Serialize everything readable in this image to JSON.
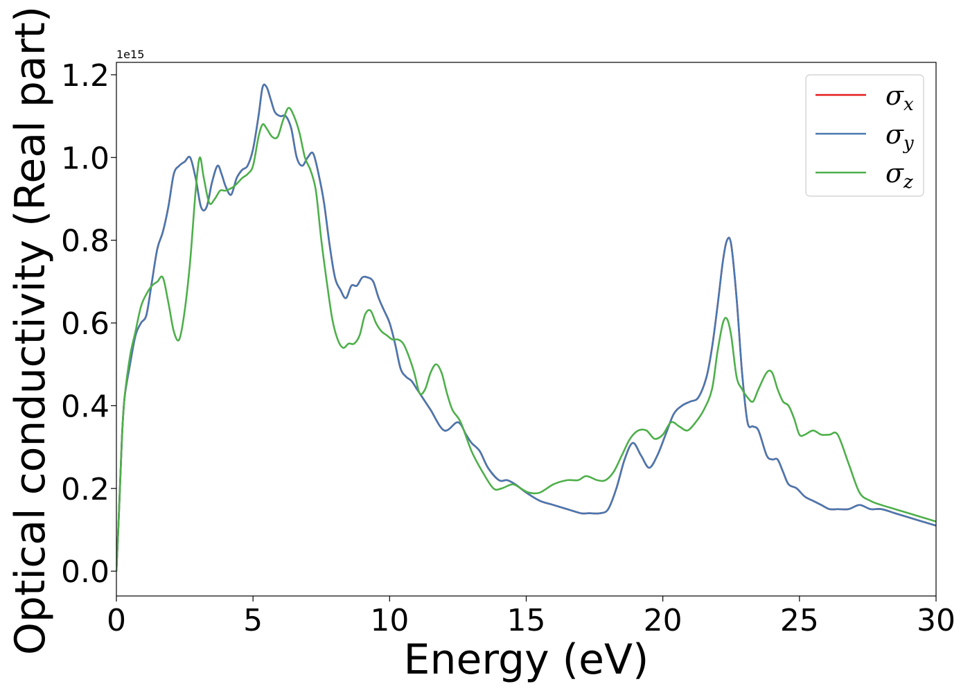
{
  "chart_data": {
    "type": "line",
    "xlabel": "Energy (eV)",
    "ylabel": "Optical conductivity (Real part)",
    "y_offset_label": "1e15",
    "xlim": [
      0,
      30
    ],
    "ylim": [
      -0.06,
      1.23
    ],
    "xticks": [
      0,
      5,
      10,
      15,
      20,
      25,
      30
    ],
    "xtick_labels": [
      "0",
      "5",
      "10",
      "15",
      "20",
      "25",
      "30"
    ],
    "yticks": [
      0.0,
      0.2,
      0.4,
      0.6,
      0.8,
      1.0,
      1.2
    ],
    "ytick_labels": [
      "0.0",
      "0.2",
      "0.4",
      "0.6",
      "0.8",
      "1.0",
      "1.2"
    ],
    "grid": false,
    "legend_position": "top-right",
    "series": [
      {
        "name": "σx",
        "symbol": "σ",
        "subscript": "x",
        "color": "#e41a1c",
        "x": [
          0,
          0.1,
          0.2,
          0.3,
          0.5,
          0.7,
          0.9,
          1.1,
          1.3,
          1.5,
          1.7,
          1.9,
          2.1,
          2.3,
          2.5,
          2.7,
          2.9,
          3.1,
          3.3,
          3.5,
          3.7,
          3.85,
          4.0,
          4.2,
          4.4,
          4.6,
          4.8,
          5.0,
          5.2,
          5.35,
          5.5,
          5.65,
          5.8,
          6.0,
          6.2,
          6.4,
          6.6,
          6.8,
          7.0,
          7.2,
          7.4,
          7.6,
          7.8,
          8.0,
          8.2,
          8.4,
          8.6,
          8.8,
          9.0,
          9.2,
          9.4,
          9.6,
          9.8,
          10.0,
          10.2,
          10.4,
          10.6,
          10.8,
          11.0,
          11.2,
          11.5,
          12.0,
          12.5,
          12.8,
          13.0,
          13.3,
          13.6,
          14.0,
          14.3,
          14.6,
          15.0,
          15.5,
          16.0,
          16.5,
          17.0,
          17.3,
          17.7,
          18.0,
          18.3,
          18.6,
          18.9,
          19.2,
          19.5,
          19.8,
          20.1,
          20.4,
          20.7,
          21.0,
          21.3,
          21.6,
          21.8,
          22.0,
          22.2,
          22.35,
          22.5,
          22.7,
          22.9,
          23.1,
          23.3,
          23.5,
          23.8,
          24.0,
          24.2,
          24.4,
          24.6,
          24.9,
          25.2,
          25.5,
          25.8,
          26.1,
          26.4,
          26.8,
          27.2,
          27.6,
          28.0,
          28.5,
          29.0,
          29.5,
          30.0
        ],
        "y": [
          0.0,
          0.15,
          0.32,
          0.42,
          0.5,
          0.57,
          0.6,
          0.62,
          0.7,
          0.78,
          0.82,
          0.88,
          0.96,
          0.98,
          0.99,
          1.0,
          0.95,
          0.88,
          0.88,
          0.94,
          0.98,
          0.96,
          0.93,
          0.91,
          0.95,
          0.97,
          0.98,
          1.02,
          1.1,
          1.17,
          1.17,
          1.14,
          1.11,
          1.1,
          1.1,
          1.07,
          1.0,
          0.98,
          1.0,
          1.01,
          0.96,
          0.89,
          0.79,
          0.71,
          0.68,
          0.66,
          0.69,
          0.69,
          0.71,
          0.71,
          0.7,
          0.66,
          0.63,
          0.6,
          0.55,
          0.49,
          0.47,
          0.46,
          0.44,
          0.42,
          0.39,
          0.34,
          0.36,
          0.33,
          0.31,
          0.29,
          0.25,
          0.22,
          0.22,
          0.21,
          0.19,
          0.17,
          0.16,
          0.15,
          0.14,
          0.14,
          0.14,
          0.15,
          0.2,
          0.27,
          0.31,
          0.28,
          0.25,
          0.28,
          0.33,
          0.38,
          0.4,
          0.41,
          0.42,
          0.47,
          0.54,
          0.64,
          0.75,
          0.8,
          0.79,
          0.66,
          0.48,
          0.36,
          0.35,
          0.34,
          0.28,
          0.27,
          0.27,
          0.24,
          0.21,
          0.2,
          0.18,
          0.17,
          0.16,
          0.15,
          0.15,
          0.15,
          0.16,
          0.15,
          0.15,
          0.14,
          0.13,
          0.12,
          0.11
        ]
      },
      {
        "name": "σy",
        "symbol": "σ",
        "subscript": "y",
        "color": "#4878b0",
        "x": [
          0,
          0.1,
          0.2,
          0.3,
          0.5,
          0.7,
          0.9,
          1.1,
          1.3,
          1.5,
          1.7,
          1.9,
          2.1,
          2.3,
          2.5,
          2.7,
          2.9,
          3.1,
          3.3,
          3.5,
          3.7,
          3.85,
          4.0,
          4.2,
          4.4,
          4.6,
          4.8,
          5.0,
          5.2,
          5.35,
          5.5,
          5.65,
          5.8,
          6.0,
          6.2,
          6.4,
          6.6,
          6.8,
          7.0,
          7.2,
          7.4,
          7.6,
          7.8,
          8.0,
          8.2,
          8.4,
          8.6,
          8.8,
          9.0,
          9.2,
          9.4,
          9.6,
          9.8,
          10.0,
          10.2,
          10.4,
          10.6,
          10.8,
          11.0,
          11.2,
          11.5,
          12.0,
          12.5,
          12.8,
          13.0,
          13.3,
          13.6,
          14.0,
          14.3,
          14.6,
          15.0,
          15.5,
          16.0,
          16.5,
          17.0,
          17.3,
          17.7,
          18.0,
          18.3,
          18.6,
          18.9,
          19.2,
          19.5,
          19.8,
          20.1,
          20.4,
          20.7,
          21.0,
          21.3,
          21.6,
          21.8,
          22.0,
          22.2,
          22.35,
          22.5,
          22.7,
          22.9,
          23.1,
          23.3,
          23.5,
          23.8,
          24.0,
          24.2,
          24.4,
          24.6,
          24.9,
          25.2,
          25.5,
          25.8,
          26.1,
          26.4,
          26.8,
          27.2,
          27.6,
          28.0,
          28.5,
          29.0,
          29.5,
          30.0
        ],
        "y": [
          0.0,
          0.15,
          0.32,
          0.42,
          0.5,
          0.57,
          0.6,
          0.62,
          0.7,
          0.78,
          0.82,
          0.88,
          0.96,
          0.98,
          0.99,
          1.0,
          0.95,
          0.88,
          0.88,
          0.94,
          0.98,
          0.96,
          0.93,
          0.91,
          0.95,
          0.97,
          0.98,
          1.02,
          1.1,
          1.17,
          1.17,
          1.14,
          1.11,
          1.1,
          1.1,
          1.07,
          1.0,
          0.98,
          1.0,
          1.01,
          0.96,
          0.89,
          0.79,
          0.71,
          0.68,
          0.66,
          0.69,
          0.69,
          0.71,
          0.71,
          0.7,
          0.66,
          0.63,
          0.6,
          0.55,
          0.49,
          0.47,
          0.46,
          0.44,
          0.42,
          0.39,
          0.34,
          0.36,
          0.33,
          0.31,
          0.29,
          0.25,
          0.22,
          0.22,
          0.21,
          0.19,
          0.17,
          0.16,
          0.15,
          0.14,
          0.14,
          0.14,
          0.15,
          0.2,
          0.27,
          0.31,
          0.28,
          0.25,
          0.28,
          0.33,
          0.38,
          0.4,
          0.41,
          0.42,
          0.47,
          0.54,
          0.64,
          0.75,
          0.8,
          0.79,
          0.66,
          0.48,
          0.36,
          0.35,
          0.34,
          0.28,
          0.27,
          0.27,
          0.24,
          0.21,
          0.2,
          0.18,
          0.17,
          0.16,
          0.15,
          0.15,
          0.15,
          0.16,
          0.15,
          0.15,
          0.14,
          0.13,
          0.12,
          0.11
        ]
      },
      {
        "name": "σz",
        "symbol": "σ",
        "subscript": "z",
        "color": "#4daf4a",
        "x": [
          0,
          0.1,
          0.2,
          0.3,
          0.5,
          0.7,
          0.9,
          1.1,
          1.3,
          1.5,
          1.7,
          1.9,
          2.1,
          2.3,
          2.5,
          2.7,
          2.9,
          3.05,
          3.2,
          3.4,
          3.6,
          3.8,
          4.0,
          4.3,
          4.6,
          4.8,
          5.0,
          5.2,
          5.35,
          5.5,
          5.7,
          5.9,
          6.1,
          6.3,
          6.5,
          6.7,
          6.9,
          7.1,
          7.3,
          7.5,
          7.7,
          7.9,
          8.1,
          8.3,
          8.5,
          8.7,
          8.9,
          9.1,
          9.3,
          9.5,
          9.7,
          9.9,
          10.1,
          10.3,
          10.5,
          10.7,
          10.9,
          11.1,
          11.3,
          11.5,
          11.7,
          11.9,
          12.1,
          12.3,
          12.6,
          13.0,
          13.4,
          13.8,
          14.1,
          14.5,
          14.8,
          15.1,
          15.5,
          16.0,
          16.5,
          16.9,
          17.2,
          17.6,
          17.9,
          18.2,
          18.5,
          18.8,
          19.1,
          19.4,
          19.7,
          20.0,
          20.3,
          20.6,
          20.9,
          21.2,
          21.5,
          21.8,
          22.0,
          22.2,
          22.35,
          22.5,
          22.7,
          22.9,
          23.1,
          23.3,
          23.5,
          23.8,
          24.0,
          24.2,
          24.4,
          24.6,
          24.8,
          25.0,
          25.2,
          25.5,
          25.8,
          26.1,
          26.4,
          26.8,
          27.2,
          27.6,
          28.0,
          28.5,
          29.0,
          29.5,
          30.0
        ],
        "y": [
          0.0,
          0.15,
          0.32,
          0.42,
          0.52,
          0.58,
          0.64,
          0.67,
          0.69,
          0.7,
          0.71,
          0.65,
          0.58,
          0.56,
          0.63,
          0.75,
          0.92,
          1.0,
          0.95,
          0.89,
          0.9,
          0.92,
          0.92,
          0.93,
          0.95,
          0.96,
          0.98,
          1.05,
          1.08,
          1.07,
          1.05,
          1.05,
          1.09,
          1.12,
          1.1,
          1.06,
          1.0,
          0.97,
          0.92,
          0.8,
          0.7,
          0.61,
          0.56,
          0.54,
          0.55,
          0.55,
          0.57,
          0.62,
          0.63,
          0.6,
          0.58,
          0.57,
          0.56,
          0.56,
          0.55,
          0.52,
          0.48,
          0.43,
          0.44,
          0.48,
          0.5,
          0.48,
          0.43,
          0.39,
          0.36,
          0.29,
          0.24,
          0.2,
          0.2,
          0.21,
          0.2,
          0.19,
          0.19,
          0.21,
          0.22,
          0.22,
          0.23,
          0.22,
          0.22,
          0.24,
          0.28,
          0.32,
          0.34,
          0.34,
          0.32,
          0.33,
          0.36,
          0.35,
          0.34,
          0.36,
          0.39,
          0.44,
          0.53,
          0.6,
          0.61,
          0.57,
          0.47,
          0.44,
          0.42,
          0.41,
          0.44,
          0.48,
          0.48,
          0.44,
          0.41,
          0.4,
          0.37,
          0.33,
          0.33,
          0.34,
          0.33,
          0.33,
          0.33,
          0.26,
          0.19,
          0.17,
          0.16,
          0.15,
          0.14,
          0.13,
          0.12
        ]
      }
    ]
  }
}
